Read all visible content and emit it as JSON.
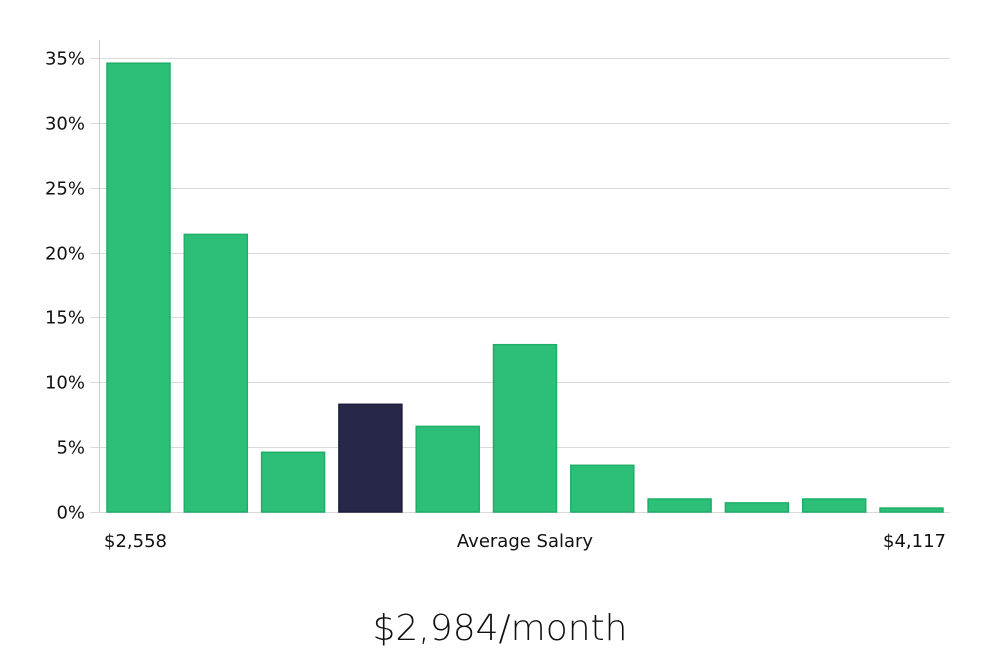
{
  "chart_data": {
    "type": "bar",
    "categories": [
      "1",
      "2",
      "3",
      "4",
      "5",
      "6",
      "7",
      "8",
      "9",
      "10",
      "11"
    ],
    "values": [
      34.6,
      21.4,
      4.6,
      8.3,
      6.6,
      12.9,
      3.6,
      1.0,
      0.7,
      1.0,
      0.3
    ],
    "highlight_index": 3,
    "ylim": [
      0,
      35
    ],
    "yticks": [
      0,
      5,
      10,
      15,
      20,
      25,
      30,
      35
    ],
    "ytick_labels": [
      "0%",
      "5%",
      "10%",
      "15%",
      "20%",
      "25%",
      "30%",
      "35%"
    ],
    "xlabel": "Average Salary",
    "x_min_label": "$2,558",
    "x_max_label": "$4,117",
    "grid": true,
    "colors": {
      "bar": "#2bbf78",
      "bar_edge": "#1fae68",
      "highlight": "#272747",
      "grid": "#d9d9d9",
      "axis": "#cccccc"
    }
  },
  "headline": "$2,984/month"
}
